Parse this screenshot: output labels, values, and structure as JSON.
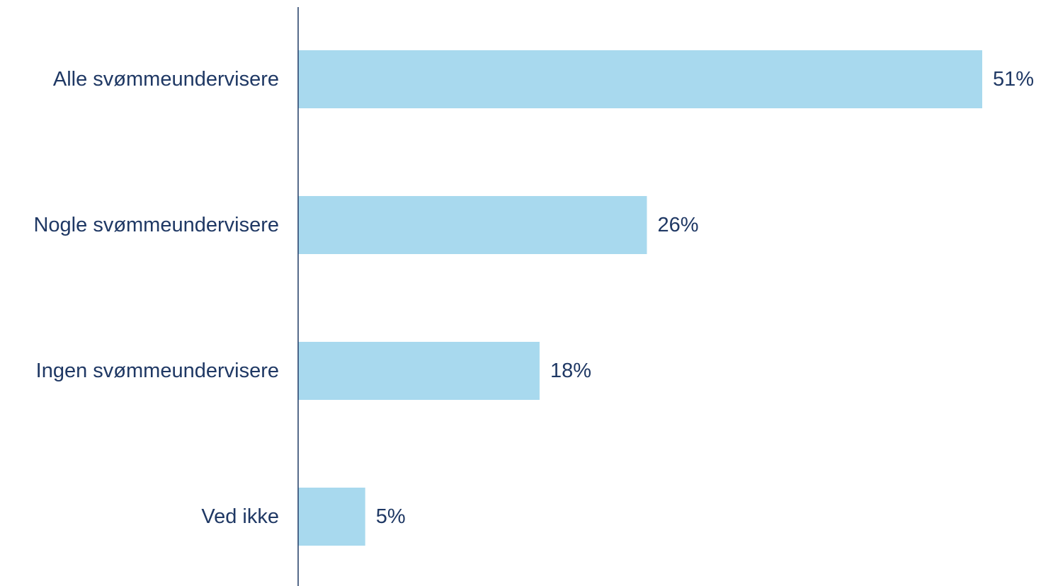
{
  "chart_data": {
    "type": "bar",
    "orientation": "horizontal",
    "categories": [
      "Alle svømmeundervisere",
      "Nogle svømmeundervisere",
      "Ingen svømmeundervisere",
      "Ved ikke"
    ],
    "values": [
      51,
      26,
      18,
      5
    ],
    "data_labels": [
      "51%",
      "26%",
      "18%",
      "5%"
    ],
    "unit": "%",
    "xlim": [
      0,
      51
    ],
    "grid": false,
    "legend": "none",
    "title": "",
    "xlabel": "",
    "ylabel": ""
  },
  "colors": {
    "bar": "#a8d9ee",
    "text": "#1f3864",
    "axis": "#1f3864"
  }
}
